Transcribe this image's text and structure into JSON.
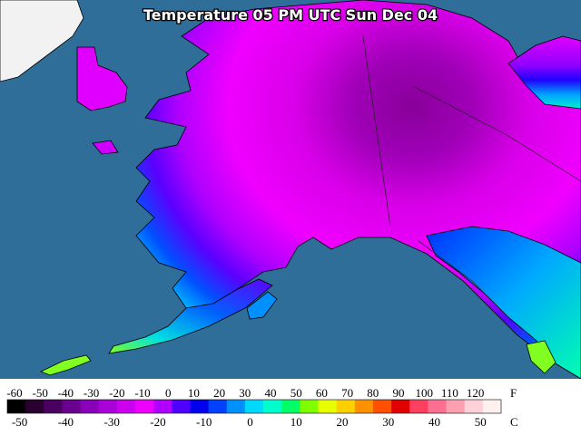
{
  "map": {
    "title": "Temperature 05 PM UTC Sun Dec 04"
  },
  "legend": {
    "fahrenheit_unit": "F",
    "celsius_unit": "C",
    "fahrenheit_labels": [
      -60,
      -50,
      -40,
      -30,
      -20,
      -10,
      0,
      10,
      20,
      30,
      40,
      50,
      60,
      70,
      80,
      90,
      100,
      110,
      120
    ],
    "celsius_labels": [
      -50,
      -40,
      -30,
      -20,
      -10,
      0,
      10,
      20,
      30,
      40,
      50
    ],
    "colors": [
      "#000000",
      "#2a0030",
      "#4a0060",
      "#6a0090",
      "#8a00b8",
      "#aa00d8",
      "#cc00ee",
      "#ee00ff",
      "#b000ff",
      "#5000ff",
      "#0000ee",
      "#0040ff",
      "#0090ff",
      "#00d8ff",
      "#00ffcc",
      "#00ff66",
      "#80ff00",
      "#e8ff00",
      "#ffd000",
      "#ff9000",
      "#ff5000",
      "#e00000",
      "#ff4060",
      "#ff7090",
      "#ffa0b0",
      "#ffd0d8",
      "#fff0f0"
    ]
  }
}
